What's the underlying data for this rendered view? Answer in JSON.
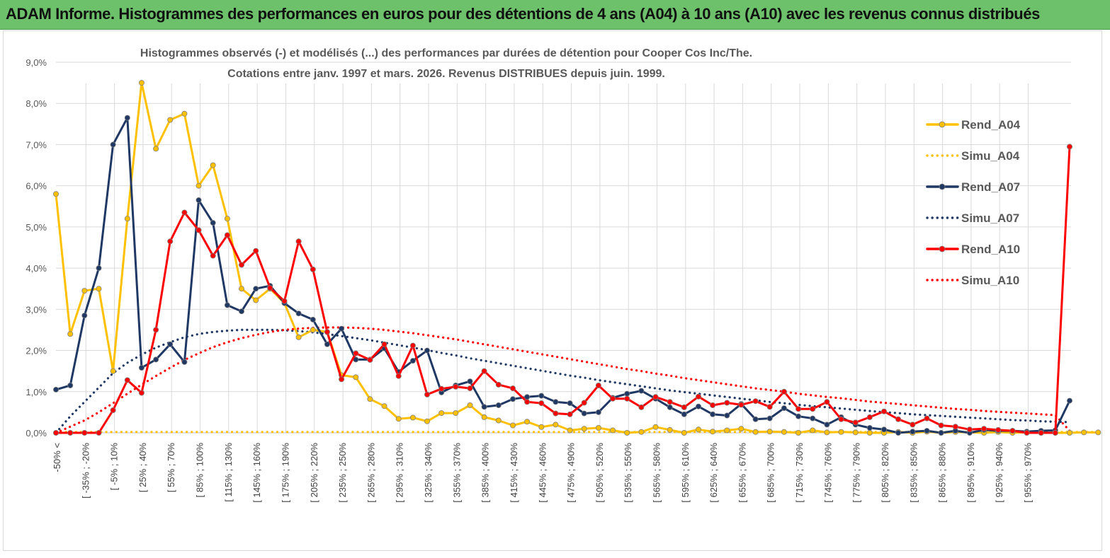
{
  "banner": {
    "title": "ADAM Informe. Histogrammes des performances en euros pour des détentions de 4 ans (A04) à 10 ans (A10) avec les revenus connus distribués"
  },
  "colors": {
    "banner_bg": "#6cc16a",
    "a04": "#FFC000",
    "a07": "#1F3864",
    "a10": "#FF0000"
  },
  "chart_data": {
    "type": "line",
    "title_line1": "Histogrammes observés (-) et modélisés (...) des performances par durées de détention pour Cooper Cos Inc/The.",
    "title_line2": "Cotations entre janv. 1997 et mars. 2026. Revenus DISTRIBUES depuis juin. 1999.",
    "xlabel": "",
    "ylabel": "",
    "ylim": [
      0,
      9
    ],
    "yticks": [
      "0,0%",
      "1,0%",
      "2,0%",
      "3,0%",
      "4,0%",
      "5,0%",
      "6,0%",
      "7,0%",
      "8,0%",
      "9,0%"
    ],
    "grid": true,
    "legend_position": "right",
    "x_tick_labels": [
      "-50% <",
      "[ -35% ; -20%",
      "[ -5% ; 10%",
      "[ 25% ; 40%",
      "[ 55% ; 70%",
      "[ 85% ; 100%",
      "[ 115% ; 130%",
      "[ 145% ; 160%",
      "[ 175% ; 190%",
      "[ 205% ; 220%",
      "[ 235% ; 250%",
      "[ 265% ; 280%",
      "[ 295% ; 310%",
      "[ 325% ; 340%",
      "[ 355% ; 370%",
      "[ 385% ; 400%",
      "[ 415% ; 430%",
      "[ 445% ; 460%",
      "[ 475% ; 490%",
      "[ 505% ; 520%",
      "[ 535% ; 550%",
      "[ 565% ; 580%",
      "[ 595% ; 610%",
      "[ 625% ; 640%",
      "[ 655% ; 670%",
      "[ 685% ; 700%",
      "[ 715% ; 730%",
      "[ 745% ; 760%",
      "[ 775% ; 790%",
      "[ 805% ; 820%",
      "[ 835% ; 850%",
      "[ 865% ; 880%",
      "[ 895% ; 910%",
      "[ 925% ; 940%",
      "[ 955% ; 970%"
    ],
    "series": [
      {
        "name": "Rend_A04",
        "style": "solid",
        "color": "#FFC000",
        "values": [
          5.8,
          2.4,
          3.45,
          3.5,
          1.5,
          5.2,
          8.5,
          6.9,
          7.6,
          7.75,
          6.0,
          6.5,
          5.2,
          3.5,
          3.22,
          3.5,
          3.15,
          2.32,
          2.5,
          2.45,
          1.4,
          1.35,
          0.82,
          0.65,
          0.34,
          0.37,
          0.28,
          0.48,
          0.48,
          0.67,
          0.38,
          0.3,
          0.18,
          0.27,
          0.14,
          0.2,
          0.06,
          0.1,
          0.12,
          0.06,
          0.0,
          0.02,
          0.14,
          0.07,
          0.0,
          0.08,
          0.03,
          0.06,
          0.1,
          0.02,
          0.03,
          0.02,
          0.0,
          0.06,
          0.01,
          0.02,
          0.01,
          0.0,
          0.0,
          0.02,
          0.0,
          0.03,
          0.0,
          0.02,
          0.01,
          0.0,
          0.02,
          0.0,
          0.01,
          0.0,
          0.0,
          0.0,
          0.01,
          0.01
        ]
      },
      {
        "name": "Simu_A04",
        "style": "dotted",
        "color": "#FFC000",
        "values": [
          0.02,
          0.02,
          0.02,
          0.02,
          0.02,
          0.02,
          0.02,
          0.02,
          0.02,
          0.02,
          0.02,
          0.02,
          0.02,
          0.02,
          0.02,
          0.02,
          0.02,
          0.02,
          0.02,
          0.02,
          0.02,
          0.02,
          0.02,
          0.02,
          0.02,
          0.02,
          0.02,
          0.02,
          0.02,
          0.02,
          0.02,
          0.02,
          0.02,
          0.02,
          0.02,
          0.02,
          0.02,
          0.02,
          0.02,
          0.02,
          0.02,
          0.02,
          0.02,
          0.02,
          0.02,
          0.02,
          0.02,
          0.02,
          0.02,
          0.02,
          0.02,
          0.02,
          0.02,
          0.02,
          0.02,
          0.02,
          0.02,
          0.02,
          0.02,
          0.02,
          0.02,
          0.02,
          0.02,
          0.02,
          0.02,
          0.02,
          0.02,
          0.02,
          0.02,
          0.02,
          0.02,
          0.02,
          0.02,
          0.02
        ]
      },
      {
        "name": "Rend_A07",
        "style": "solid",
        "color": "#1F3864",
        "values": [
          1.05,
          1.15,
          2.85,
          4.0,
          7.0,
          7.65,
          1.58,
          1.78,
          2.15,
          1.72,
          5.65,
          5.1,
          3.1,
          2.95,
          3.5,
          3.57,
          3.15,
          2.9,
          2.75,
          2.15,
          2.53,
          1.78,
          1.78,
          2.05,
          1.48,
          1.75,
          2.0,
          0.98,
          1.15,
          1.25,
          0.63,
          0.67,
          0.82,
          0.87,
          0.9,
          0.75,
          0.72,
          0.47,
          0.5,
          0.85,
          0.95,
          1.02,
          0.83,
          0.62,
          0.45,
          0.64,
          0.45,
          0.42,
          0.7,
          0.33,
          0.35,
          0.6,
          0.4,
          0.35,
          0.2,
          0.38,
          0.2,
          0.12,
          0.08,
          0.0,
          0.03,
          0.05,
          0.0,
          0.05,
          0.0,
          0.07,
          0.05,
          0.05,
          0.03,
          0.05,
          0.06,
          0.78
        ]
      },
      {
        "name": "Simu_A07",
        "style": "dotted",
        "color": "#1F3864",
        "values": [
          0.0,
          0.4,
          0.75,
          1.1,
          1.45,
          1.7,
          1.9,
          2.07,
          2.2,
          2.32,
          2.4,
          2.45,
          2.48,
          2.5,
          2.5,
          2.5,
          2.49,
          2.47,
          2.44,
          2.4,
          2.35,
          2.3,
          2.25,
          2.19,
          2.13,
          2.07,
          2.01,
          1.94,
          1.88,
          1.81,
          1.75,
          1.69,
          1.63,
          1.57,
          1.51,
          1.45,
          1.39,
          1.34,
          1.28,
          1.23,
          1.18,
          1.13,
          1.08,
          1.03,
          0.99,
          0.95,
          0.91,
          0.87,
          0.83,
          0.79,
          0.75,
          0.72,
          0.68,
          0.65,
          0.62,
          0.59,
          0.56,
          0.53,
          0.5,
          0.48,
          0.45,
          0.43,
          0.41,
          0.39,
          0.37,
          0.35,
          0.33,
          0.31,
          0.3,
          0.28,
          0.27,
          0.26
        ]
      },
      {
        "name": "Rend_A10",
        "style": "solid",
        "color": "#FF0000",
        "values": [
          0.0,
          0.0,
          0.0,
          0.0,
          0.55,
          1.28,
          0.97,
          2.5,
          4.65,
          5.35,
          4.92,
          4.3,
          4.8,
          4.08,
          4.42,
          3.52,
          3.2,
          4.65,
          3.97,
          2.45,
          1.3,
          1.93,
          1.77,
          2.15,
          1.38,
          2.12,
          0.93,
          1.07,
          1.12,
          1.08,
          1.5,
          1.17,
          1.08,
          0.75,
          0.72,
          0.47,
          0.45,
          0.73,
          1.15,
          0.83,
          0.83,
          0.62,
          0.87,
          0.75,
          0.62,
          0.88,
          0.67,
          0.73,
          0.68,
          0.77,
          0.63,
          1.0,
          0.58,
          0.58,
          0.75,
          0.33,
          0.25,
          0.38,
          0.52,
          0.33,
          0.2,
          0.35,
          0.18,
          0.15,
          0.08,
          0.1,
          0.07,
          0.05,
          0.0,
          0.0,
          0.0,
          6.95
        ]
      },
      {
        "name": "Simu_A10",
        "style": "dotted",
        "color": "#FF0000",
        "values": [
          0.0,
          0.15,
          0.3,
          0.5,
          0.72,
          0.95,
          1.17,
          1.38,
          1.58,
          1.77,
          1.93,
          2.08,
          2.2,
          2.3,
          2.38,
          2.45,
          2.5,
          2.53,
          2.55,
          2.56,
          2.56,
          2.55,
          2.53,
          2.5,
          2.46,
          2.42,
          2.37,
          2.32,
          2.27,
          2.21,
          2.15,
          2.09,
          2.03,
          1.97,
          1.91,
          1.85,
          1.79,
          1.73,
          1.67,
          1.61,
          1.55,
          1.5,
          1.44,
          1.39,
          1.33,
          1.28,
          1.23,
          1.18,
          1.13,
          1.08,
          1.04,
          1.0,
          0.95,
          0.91,
          0.87,
          0.84,
          0.8,
          0.76,
          0.73,
          0.7,
          0.67,
          0.64,
          0.61,
          0.58,
          0.56,
          0.53,
          0.51,
          0.49,
          0.47,
          0.45,
          0.43,
          0.05
        ]
      }
    ]
  }
}
